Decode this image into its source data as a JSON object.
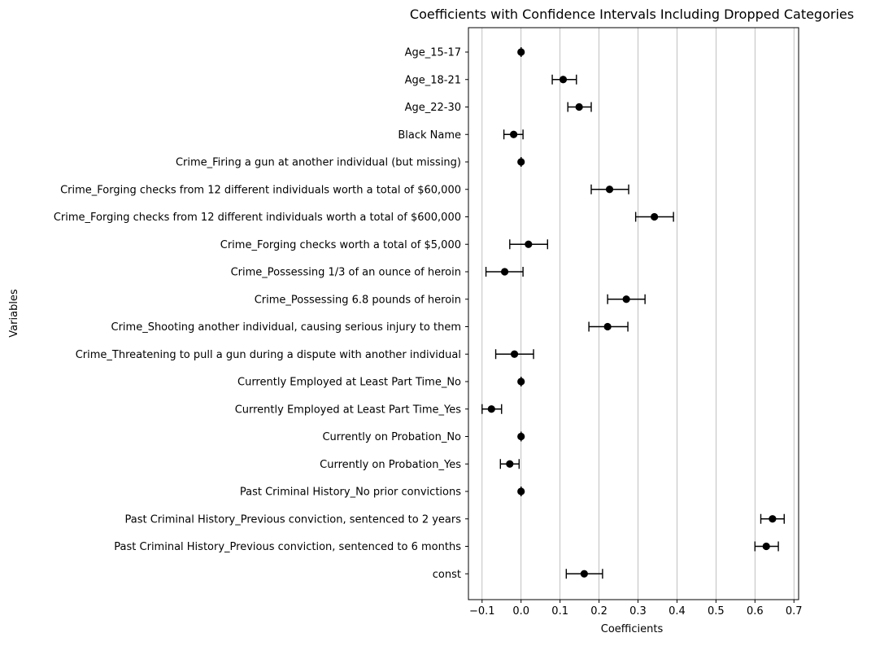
{
  "chart_data": {
    "type": "scatter",
    "title": "Coefficients with Confidence Intervals Including Dropped Categories",
    "xlabel": "Coefficients",
    "ylabel": "Variables",
    "xlim": [
      -0.135,
      0.712
    ],
    "xticks": [
      -0.1,
      0.0,
      0.1,
      0.2,
      0.3,
      0.4,
      0.5,
      0.6,
      0.7
    ],
    "xtick_labels": [
      "−0.1",
      "0.0",
      "0.1",
      "0.2",
      "0.3",
      "0.4",
      "0.5",
      "0.6",
      "0.7"
    ],
    "grid": "vertical",
    "marker_color": "#000000",
    "grid_color": "#b0b0b0",
    "points": [
      {
        "label": "Age_15-17",
        "coef": 0.0,
        "lower": 0.0,
        "upper": 0.0
      },
      {
        "label": "Age_18-21",
        "coef": 0.108,
        "lower": 0.08,
        "upper": 0.142
      },
      {
        "label": "Age_22-30",
        "coef": 0.149,
        "lower": 0.12,
        "upper": 0.18
      },
      {
        "label": "Black Name",
        "coef": -0.019,
        "lower": -0.044,
        "upper": 0.005
      },
      {
        "label": "Crime_Firing a gun at another individual (but missing)",
        "coef": 0.0,
        "lower": 0.0,
        "upper": 0.0
      },
      {
        "label": "Crime_Forging checks from 12 different individuals worth a total of $60,000",
        "coef": 0.227,
        "lower": 0.18,
        "upper": 0.276
      },
      {
        "label": "Crime_Forging checks from 12 different individuals worth a total of $600,000",
        "coef": 0.342,
        "lower": 0.294,
        "upper": 0.391
      },
      {
        "label": "Crime_Forging checks worth a total of $5,000",
        "coef": 0.019,
        "lower": -0.029,
        "upper": 0.068
      },
      {
        "label": "Crime_Possessing 1/3 of an ounce of heroin",
        "coef": -0.042,
        "lower": -0.09,
        "upper": 0.005
      },
      {
        "label": "Crime_Possessing 6.8 pounds of heroin",
        "coef": 0.27,
        "lower": 0.222,
        "upper": 0.318
      },
      {
        "label": "Crime_Shooting another individual, causing serious injury to them",
        "coef": 0.222,
        "lower": 0.174,
        "upper": 0.274
      },
      {
        "label": "Crime_Threatening to pull a gun during a dispute with another individual",
        "coef": -0.017,
        "lower": -0.065,
        "upper": 0.032
      },
      {
        "label": "Currently Employed at Least Part Time_No",
        "coef": 0.0,
        "lower": 0.0,
        "upper": 0.0
      },
      {
        "label": "Currently Employed at Least Part Time_Yes",
        "coef": -0.076,
        "lower": -0.1,
        "upper": -0.05
      },
      {
        "label": "Currently on Probation_No",
        "coef": 0.0,
        "lower": 0.0,
        "upper": 0.0
      },
      {
        "label": "Currently on Probation_Yes",
        "coef": -0.029,
        "lower": -0.053,
        "upper": -0.005
      },
      {
        "label": "Past Criminal History_No prior convictions",
        "coef": 0.0,
        "lower": 0.0,
        "upper": 0.0
      },
      {
        "label": "Past Criminal History_Previous conviction, sentenced to 2 years",
        "coef": 0.645,
        "lower": 0.615,
        "upper": 0.675
      },
      {
        "label": "Past Criminal History_Previous conviction, sentenced to 6 months",
        "coef": 0.629,
        "lower": 0.6,
        "upper": 0.66
      },
      {
        "label": "const",
        "coef": 0.162,
        "lower": 0.116,
        "upper": 0.209
      }
    ]
  }
}
